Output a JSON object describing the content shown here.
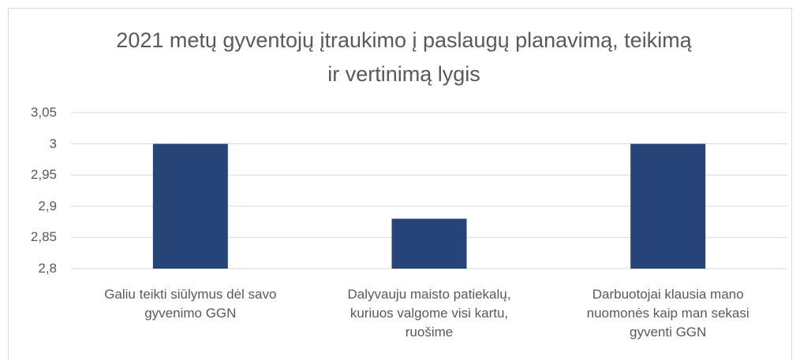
{
  "chart_data": {
    "type": "bar",
    "title": "2021 metų gyventojų įtraukimo į paslaugų planavimą, teikimą ir vertinimą lygis",
    "categories": [
      "Galiu teikti siūlymus dėl savo gyvenimo GGN",
      "Dalyvauju maisto patiekalų, kuriuos valgome visi kartu, ruošime",
      "Darbuotojai klausia mano nuomonės kaip man sekasi gyventi GGN"
    ],
    "values": [
      3,
      2.88,
      3
    ],
    "color": "#264478",
    "ylim": [
      2.8,
      3.05
    ],
    "yticks": [
      {
        "value": 2.8,
        "label": "2,8"
      },
      {
        "value": 2.85,
        "label": "2,85"
      },
      {
        "value": 2.9,
        "label": "2,9"
      },
      {
        "value": 2.95,
        "label": "2,95"
      },
      3,
      {
        "value": 3.05,
        "label": "3,05"
      }
    ],
    "grid": true
  }
}
